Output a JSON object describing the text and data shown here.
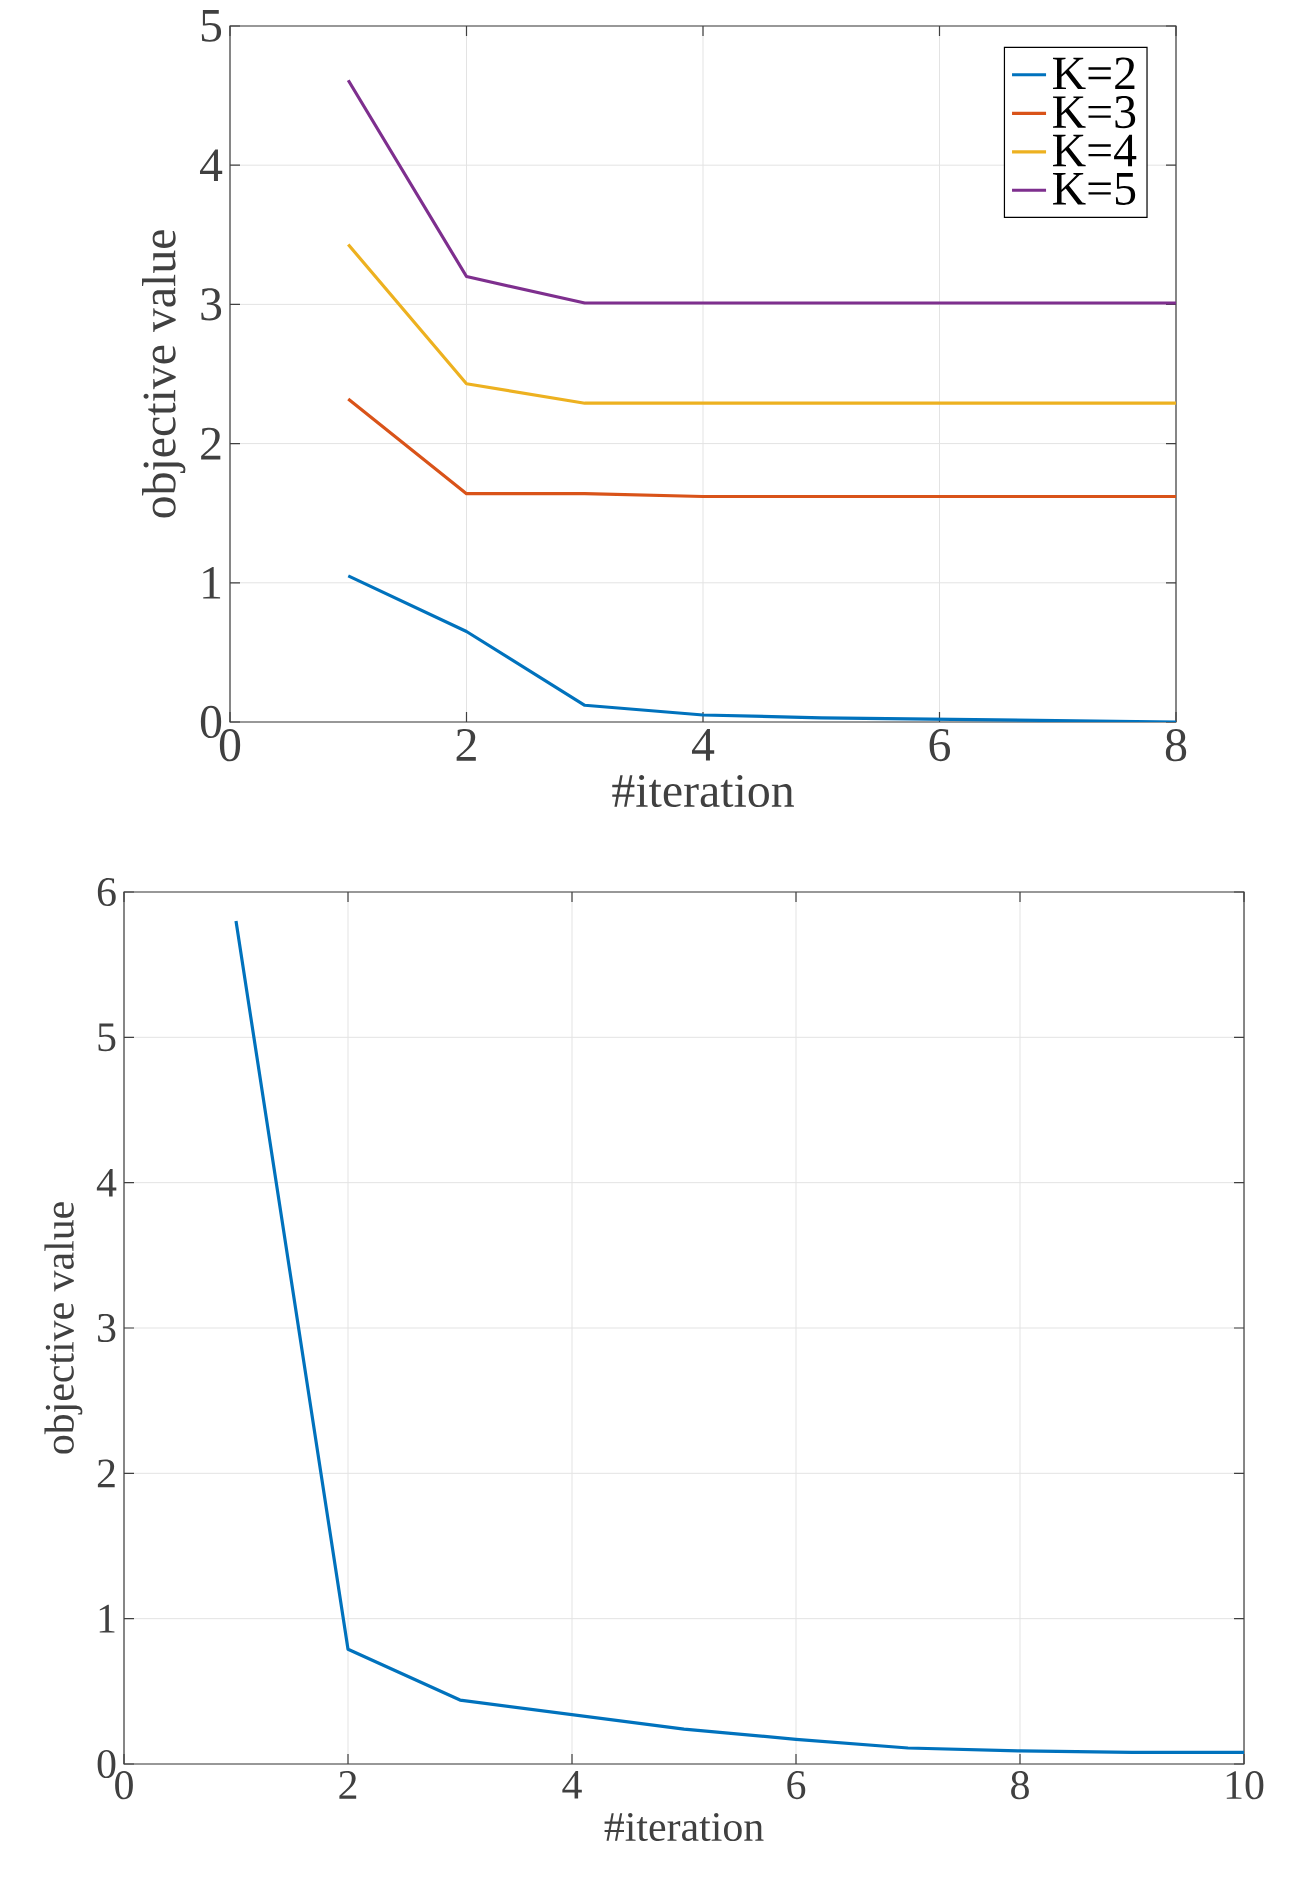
{
  "chart_data": [
    {
      "type": "line",
      "xlabel": "#iteration",
      "ylabel": "objective value",
      "x": [
        1,
        2,
        3,
        4,
        5,
        6,
        7,
        8
      ],
      "xlim": [
        0,
        8
      ],
      "ylim": [
        0,
        5
      ],
      "xticks": [
        0,
        2,
        4,
        6,
        8
      ],
      "yticks": [
        0,
        1,
        2,
        3,
        4,
        5
      ],
      "grid": true,
      "legend": "top right",
      "series": [
        {
          "name": "K=2",
          "color": "#0072bd",
          "values": [
            1.05,
            0.65,
            0.12,
            0.05,
            0.03,
            0.02,
            0.01,
            0.0
          ]
        },
        {
          "name": "K=3",
          "color": "#d95319",
          "values": [
            2.32,
            1.64,
            1.64,
            1.62,
            1.62,
            1.62,
            1.62,
            1.62
          ]
        },
        {
          "name": "K=4",
          "color": "#edb120",
          "values": [
            3.43,
            2.43,
            2.29,
            2.29,
            2.29,
            2.29,
            2.29,
            2.29
          ]
        },
        {
          "name": "K=5",
          "color": "#7e2f8e",
          "values": [
            4.61,
            3.2,
            3.01,
            3.01,
            3.01,
            3.01,
            3.01,
            3.01
          ]
        }
      ]
    },
    {
      "type": "line",
      "xlabel": "#iteration",
      "ylabel": "objective value",
      "x": [
        1,
        2,
        3,
        4,
        5,
        6,
        7,
        8,
        9,
        10
      ],
      "xlim": [
        0,
        10
      ],
      "ylim": [
        0,
        6
      ],
      "xticks": [
        0,
        2,
        4,
        6,
        8,
        10
      ],
      "yticks": [
        0,
        1,
        2,
        3,
        4,
        5,
        6
      ],
      "grid": true,
      "series": [
        {
          "color": "#0072bd",
          "values": [
            5.8,
            0.79,
            0.44,
            0.34,
            0.24,
            0.17,
            0.11,
            0.09,
            0.08,
            0.08
          ]
        }
      ]
    }
  ]
}
